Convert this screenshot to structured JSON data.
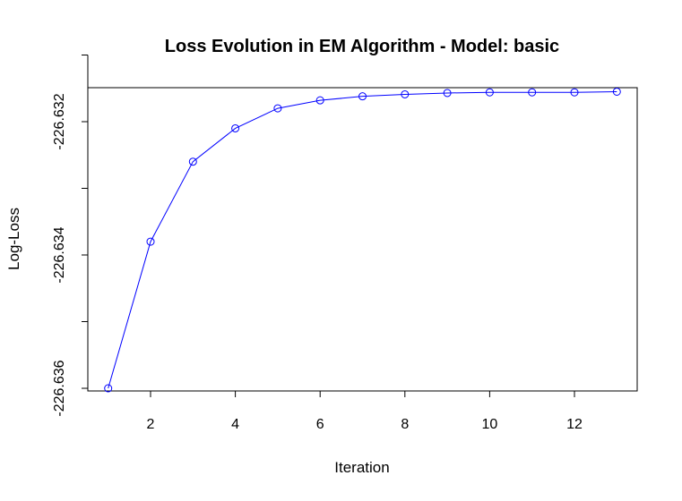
{
  "chart_data": {
    "type": "line",
    "title": "Loss Evolution in EM Algorithm - Model: basic",
    "xlabel": "Iteration",
    "ylabel": "Log-Loss",
    "x": [
      1,
      2,
      3,
      4,
      5,
      6,
      7,
      8,
      9,
      10,
      11,
      12,
      13
    ],
    "series": [
      {
        "name": "Log-Loss",
        "values": [
          -226.636,
          -226.6338,
          -226.6326,
          -226.6321,
          -226.6318,
          -226.63168,
          -226.63162,
          -226.63159,
          -226.63157,
          -226.63156,
          -226.63156,
          -226.63156,
          -226.63155
        ],
        "color": "#0000ff",
        "marker": "open-circle"
      }
    ],
    "xticks": [
      2,
      4,
      6,
      8,
      10,
      12
    ],
    "xtick_labels": [
      "2",
      "4",
      "6",
      "8",
      "10",
      "12"
    ],
    "yticks": [
      -226.636,
      -226.635,
      -226.634,
      -226.633,
      -226.632,
      -226.631
    ],
    "ytick_labels": [
      "-226.636",
      "",
      "-226.634",
      "",
      "-226.632",
      ""
    ],
    "xlim": [
      0.52,
      13.48
    ],
    "ylim": [
      -226.63604,
      -226.63149
    ],
    "grid": false,
    "legend": "none"
  }
}
